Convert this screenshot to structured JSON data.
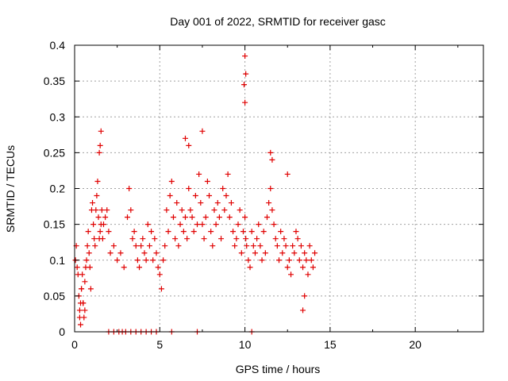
{
  "chart_data": {
    "type": "scatter",
    "title": "Day 001 of 2022, SRMTID for receiver gasc",
    "xlabel": "GPS time / hours",
    "ylabel": "SRMTID / TECUs",
    "xlim": [
      0,
      24
    ],
    "ylim": [
      0,
      0.4
    ],
    "x_ticks": [
      0,
      5,
      10,
      15,
      20
    ],
    "x_tick_labels": [
      "0",
      "5",
      "10",
      "15",
      "20"
    ],
    "y_ticks": [
      0,
      0.05,
      0.1,
      0.15,
      0.2,
      0.25,
      0.3,
      0.35,
      0.4
    ],
    "y_tick_labels": [
      "0",
      "0.05",
      "0.1",
      "0.15",
      "0.2",
      "0.25",
      "0.3",
      "0.35",
      "0.4"
    ],
    "grid": true,
    "marker": "+",
    "series": [
      {
        "name": "SRMTID",
        "color": "#e00000",
        "x": [
          0.05,
          0.1,
          0.15,
          0.2,
          0.25,
          0.3,
          0.35,
          0.4,
          0.45,
          0.5,
          0.55,
          0.6,
          0.65,
          0.7,
          0.75,
          0.8,
          0.85,
          0.9,
          0.95,
          1.0,
          1.05,
          1.1,
          1.15,
          1.2,
          1.25,
          1.3,
          1.35,
          1.4,
          1.45,
          1.5,
          1.55,
          1.6,
          1.65,
          1.7,
          1.8,
          1.9,
          2.0,
          2.1,
          2.3,
          2.5,
          2.7,
          2.9,
          3.1,
          3.2,
          3.3,
          3.4,
          3.5,
          3.6,
          3.7,
          3.8,
          3.9,
          4.0,
          4.1,
          4.2,
          4.3,
          4.4,
          4.5,
          4.6,
          4.7,
          4.8,
          4.9,
          5.0,
          5.1,
          5.2,
          5.3,
          5.4,
          5.5,
          5.6,
          5.7,
          5.8,
          5.9,
          6.0,
          6.1,
          6.2,
          6.3,
          6.4,
          6.5,
          6.6,
          6.7,
          6.8,
          6.9,
          7.0,
          7.1,
          7.2,
          7.3,
          7.4,
          7.5,
          7.6,
          7.7,
          7.8,
          7.9,
          8.0,
          8.1,
          8.2,
          8.3,
          8.4,
          8.5,
          8.6,
          8.7,
          8.8,
          8.9,
          9.0,
          9.1,
          9.2,
          9.3,
          9.4,
          9.5,
          9.6,
          9.7,
          9.8,
          9.9,
          10.0,
          10.05,
          10.1,
          10.2,
          10.3,
          10.4,
          10.5,
          10.6,
          10.7,
          10.8,
          10.9,
          11.0,
          11.1,
          11.2,
          11.3,
          11.4,
          11.5,
          11.6,
          11.7,
          11.8,
          11.9,
          12.0,
          12.1,
          12.2,
          12.3,
          12.4,
          12.5,
          12.6,
          12.7,
          12.8,
          12.9,
          13.0,
          13.1,
          13.2,
          13.3,
          13.4,
          13.5,
          13.6,
          13.7,
          13.8,
          13.9,
          14.0,
          14.1,
          1.5,
          1.55,
          1.45,
          10.0,
          10.05,
          9.95,
          10.0,
          6.5,
          6.7,
          7.5,
          11.5,
          11.6,
          12.5,
          0.5,
          0.6,
          0.4,
          13.5,
          13.4,
          0.3,
          0.35,
          2.0,
          2.3,
          2.6,
          2.8,
          3.0,
          3.3,
          3.6,
          3.9,
          4.2,
          4.5,
          4.8,
          5.7,
          7.2,
          10.4
        ],
        "y": [
          0.1,
          0.12,
          0.09,
          0.08,
          0.05,
          0.03,
          0.01,
          0.06,
          0.08,
          0.04,
          0.02,
          0.07,
          0.09,
          0.1,
          0.12,
          0.14,
          0.11,
          0.09,
          0.06,
          0.17,
          0.18,
          0.15,
          0.13,
          0.12,
          0.17,
          0.19,
          0.21,
          0.16,
          0.13,
          0.14,
          0.15,
          0.17,
          0.13,
          0.15,
          0.16,
          0.17,
          0.14,
          0.11,
          0.12,
          0.1,
          0.11,
          0.09,
          0.16,
          0.2,
          0.17,
          0.13,
          0.14,
          0.12,
          0.1,
          0.09,
          0.12,
          0.13,
          0.11,
          0.1,
          0.15,
          0.12,
          0.14,
          0.1,
          0.13,
          0.11,
          0.09,
          0.08,
          0.06,
          0.1,
          0.12,
          0.17,
          0.14,
          0.19,
          0.21,
          0.16,
          0.13,
          0.18,
          0.12,
          0.15,
          0.17,
          0.14,
          0.16,
          0.13,
          0.2,
          0.17,
          0.16,
          0.14,
          0.19,
          0.15,
          0.22,
          0.18,
          0.15,
          0.13,
          0.16,
          0.21,
          0.19,
          0.14,
          0.12,
          0.17,
          0.15,
          0.18,
          0.16,
          0.13,
          0.2,
          0.17,
          0.19,
          0.22,
          0.16,
          0.18,
          0.14,
          0.12,
          0.13,
          0.15,
          0.17,
          0.11,
          0.14,
          0.16,
          0.13,
          0.12,
          0.1,
          0.09,
          0.14,
          0.12,
          0.11,
          0.13,
          0.15,
          0.12,
          0.1,
          0.14,
          0.11,
          0.16,
          0.18,
          0.2,
          0.17,
          0.15,
          0.13,
          0.12,
          0.1,
          0.14,
          0.11,
          0.13,
          0.12,
          0.09,
          0.1,
          0.08,
          0.12,
          0.11,
          0.14,
          0.13,
          0.1,
          0.12,
          0.09,
          0.11,
          0.1,
          0.08,
          0.12,
          0.1,
          0.09,
          0.11,
          0.26,
          0.28,
          0.25,
          0.385,
          0.36,
          0.345,
          0.32,
          0.27,
          0.26,
          0.28,
          0.25,
          0.24,
          0.22,
          0.04,
          0.03,
          0.06,
          0.05,
          0.03,
          0.02,
          0.04,
          0.0,
          0.0,
          0.0,
          0.0,
          0.0,
          0.0,
          0.0,
          0.0,
          0.0,
          0.0,
          0.0,
          0.0,
          0.0,
          0.0
        ]
      }
    ]
  }
}
